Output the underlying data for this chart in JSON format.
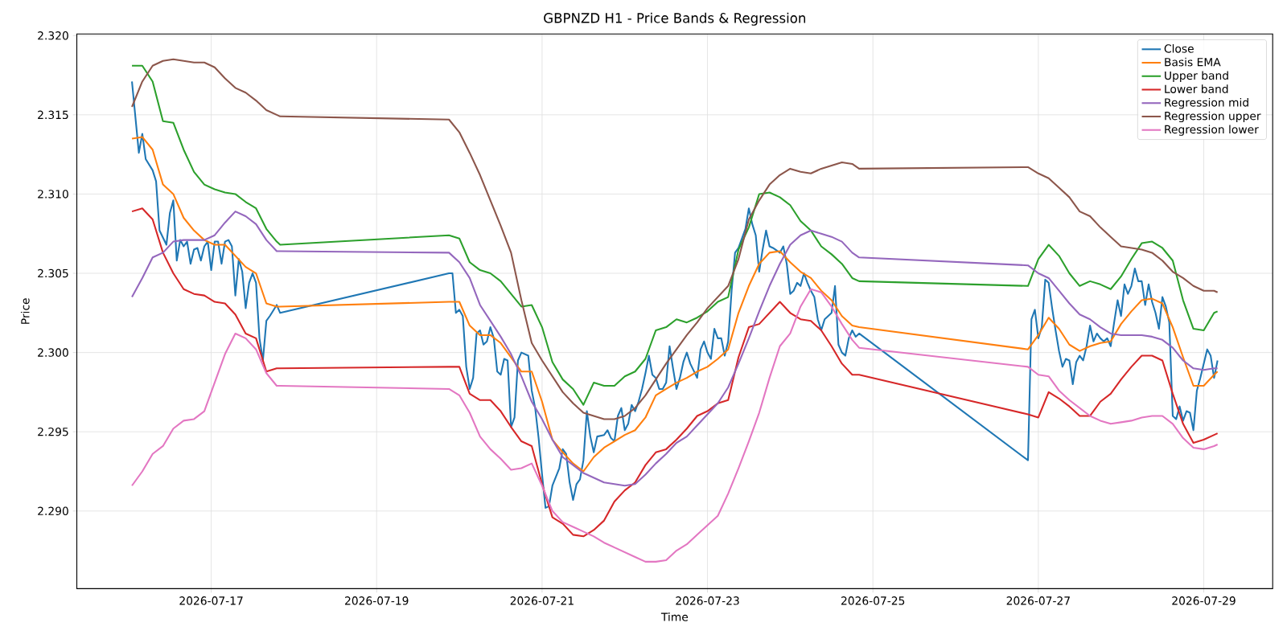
{
  "chart_data": {
    "type": "line",
    "title": "GBPNZD H1 - Price Bands & Regression",
    "xlabel": "Time",
    "ylabel": "Price",
    "xlim": [
      "2026-07-15T09:00",
      "2026-07-29T20:00"
    ],
    "ylim": [
      2.2851,
      2.3201
    ],
    "xticks": [
      "2026-07-17",
      "2026-07-19",
      "2026-07-21",
      "2026-07-23",
      "2026-07-25",
      "2026-07-27",
      "2026-07-29"
    ],
    "yticks": [
      {
        "value": 2.29,
        "label": "2.290"
      },
      2.295,
      {
        "value": 2.3,
        "label": "2.300"
      },
      2.305,
      {
        "value": 2.31,
        "label": "2.310"
      },
      2.315,
      {
        "value": 2.32,
        "label": "2.320"
      }
    ],
    "grid": true,
    "legend": "top right",
    "x": [
      "2026-07-16T01:00",
      "2026-07-16T04:00",
      "2026-07-16T07:00",
      "2026-07-16T10:00",
      "2026-07-16T13:00",
      "2026-07-16T16:00",
      "2026-07-16T19:00",
      "2026-07-16T22:00",
      "2026-07-17T01:00",
      "2026-07-17T04:00",
      "2026-07-17T07:00",
      "2026-07-17T10:00",
      "2026-07-17T13:00",
      "2026-07-17T16:00",
      "2026-07-17T19:00",
      "2026-07-17T20:00",
      "2026-07-19T21:00",
      "2026-07-20T00:00",
      "2026-07-20T03:00",
      "2026-07-20T06:00",
      "2026-07-20T09:00",
      "2026-07-20T12:00",
      "2026-07-20T15:00",
      "2026-07-20T18:00",
      "2026-07-20T21:00",
      "2026-07-21T00:00",
      "2026-07-21T03:00",
      "2026-07-21T06:00",
      "2026-07-21T09:00",
      "2026-07-21T12:00",
      "2026-07-21T15:00",
      "2026-07-21T18:00",
      "2026-07-21T21:00",
      "2026-07-22T00:00",
      "2026-07-22T03:00",
      "2026-07-22T06:00",
      "2026-07-22T09:00",
      "2026-07-22T12:00",
      "2026-07-22T15:00",
      "2026-07-22T18:00",
      "2026-07-22T21:00",
      "2026-07-23T00:00",
      "2026-07-23T03:00",
      "2026-07-23T06:00",
      "2026-07-23T09:00",
      "2026-07-23T12:00",
      "2026-07-23T15:00",
      "2026-07-23T18:00",
      "2026-07-23T21:00",
      "2026-07-24T00:00",
      "2026-07-24T03:00",
      "2026-07-24T06:00",
      "2026-07-24T09:00",
      "2026-07-24T12:00",
      "2026-07-24T15:00",
      "2026-07-24T18:00",
      "2026-07-24T20:00",
      "2026-07-26T21:00",
      "2026-07-27T00:00",
      "2026-07-27T03:00",
      "2026-07-27T06:00",
      "2026-07-27T09:00",
      "2026-07-27T12:00",
      "2026-07-27T15:00",
      "2026-07-27T18:00",
      "2026-07-27T21:00",
      "2026-07-28T00:00",
      "2026-07-28T03:00",
      "2026-07-28T06:00",
      "2026-07-28T09:00",
      "2026-07-28T12:00",
      "2026-07-28T15:00",
      "2026-07-28T18:00",
      "2026-07-28T21:00",
      "2026-07-29T00:00",
      "2026-07-29T03:00",
      "2026-07-29T04:00"
    ],
    "series": [
      {
        "name": "Close",
        "color": "#1f77b4",
        "x": [
          "2026-07-16T01:00",
          "2026-07-16T03:00",
          "2026-07-16T04:00",
          "2026-07-16T05:00",
          "2026-07-16T07:00",
          "2026-07-16T08:00",
          "2026-07-16T09:00",
          "2026-07-16T11:00",
          "2026-07-16T12:00",
          "2026-07-16T13:00",
          "2026-07-16T14:00",
          "2026-07-16T15:00",
          "2026-07-16T16:00",
          "2026-07-16T17:00",
          "2026-07-16T18:00",
          "2026-07-16T19:00",
          "2026-07-16T20:00",
          "2026-07-16T21:00",
          "2026-07-16T22:00",
          "2026-07-16T23:00",
          "2026-07-17T00:00",
          "2026-07-17T01:00",
          "2026-07-17T02:00",
          "2026-07-17T03:00",
          "2026-07-17T04:00",
          "2026-07-17T05:00",
          "2026-07-17T06:00",
          "2026-07-17T07:00",
          "2026-07-17T08:00",
          "2026-07-17T09:00",
          "2026-07-17T10:00",
          "2026-07-17T11:00",
          "2026-07-17T12:00",
          "2026-07-17T13:00",
          "2026-07-17T14:00",
          "2026-07-17T15:00",
          "2026-07-17T16:00",
          "2026-07-17T17:00",
          "2026-07-17T19:00",
          "2026-07-17T20:00",
          "2026-07-19T21:00",
          "2026-07-19T22:00",
          "2026-07-19T23:00",
          "2026-07-20T00:00",
          "2026-07-20T01:00",
          "2026-07-20T02:00",
          "2026-07-20T03:00",
          "2026-07-20T04:00",
          "2026-07-20T05:00",
          "2026-07-20T06:00",
          "2026-07-20T07:00",
          "2026-07-20T08:00",
          "2026-07-20T09:00",
          "2026-07-20T10:00",
          "2026-07-20T11:00",
          "2026-07-20T12:00",
          "2026-07-20T13:00",
          "2026-07-20T14:00",
          "2026-07-20T15:00",
          "2026-07-20T16:00",
          "2026-07-20T17:00",
          "2026-07-20T18:00",
          "2026-07-20T20:00",
          "2026-07-20T21:00",
          "2026-07-20T22:00",
          "2026-07-20T23:00",
          "2026-07-21T00:00",
          "2026-07-21T01:00",
          "2026-07-21T02:00",
          "2026-07-21T03:00",
          "2026-07-21T05:00",
          "2026-07-21T06:00",
          "2026-07-21T07:00",
          "2026-07-21T08:00",
          "2026-07-21T09:00",
          "2026-07-21T10:00",
          "2026-07-21T11:00",
          "2026-07-21T12:00",
          "2026-07-21T13:00",
          "2026-07-21T14:00",
          "2026-07-21T15:00",
          "2026-07-21T16:00",
          "2026-07-21T18:00",
          "2026-07-21T19:00",
          "2026-07-21T20:00",
          "2026-07-21T21:00",
          "2026-07-21T22:00",
          "2026-07-21T23:00",
          "2026-07-22T00:00",
          "2026-07-22T01:00",
          "2026-07-22T02:00",
          "2026-07-22T03:00",
          "2026-07-22T04:00",
          "2026-07-22T05:00",
          "2026-07-22T06:00",
          "2026-07-22T07:00",
          "2026-07-22T08:00",
          "2026-07-22T09:00",
          "2026-07-22T10:00",
          "2026-07-22T11:00",
          "2026-07-22T12:00",
          "2026-07-22T13:00",
          "2026-07-22T14:00",
          "2026-07-22T15:00",
          "2026-07-22T16:00",
          "2026-07-22T17:00",
          "2026-07-22T18:00",
          "2026-07-22T19:00",
          "2026-07-22T21:00",
          "2026-07-22T22:00",
          "2026-07-22T23:00",
          "2026-07-23T00:00",
          "2026-07-23T01:00",
          "2026-07-23T02:00",
          "2026-07-23T03:00",
          "2026-07-23T04:00",
          "2026-07-23T05:00",
          "2026-07-23T06:00",
          "2026-07-23T07:00",
          "2026-07-23T08:00",
          "2026-07-23T09:00",
          "2026-07-23T10:00",
          "2026-07-23T11:00",
          "2026-07-23T12:00",
          "2026-07-23T13:00",
          "2026-07-23T14:00",
          "2026-07-23T15:00",
          "2026-07-23T16:00",
          "2026-07-23T17:00",
          "2026-07-23T18:00",
          "2026-07-23T19:00",
          "2026-07-23T21:00",
          "2026-07-23T22:00",
          "2026-07-23T23:00",
          "2026-07-24T00:00",
          "2026-07-24T01:00",
          "2026-07-24T02:00",
          "2026-07-24T03:00",
          "2026-07-24T04:00",
          "2026-07-24T05:00",
          "2026-07-24T06:00",
          "2026-07-24T07:00",
          "2026-07-24T08:00",
          "2026-07-24T09:00",
          "2026-07-24T10:00",
          "2026-07-24T12:00",
          "2026-07-24T13:00",
          "2026-07-24T14:00",
          "2026-07-24T15:00",
          "2026-07-24T16:00",
          "2026-07-24T17:00",
          "2026-07-24T18:00",
          "2026-07-24T19:00",
          "2026-07-24T20:00",
          "2026-07-26T21:00",
          "2026-07-26T22:00",
          "2026-07-26T23:00",
          "2026-07-27T00:00",
          "2026-07-27T01:00",
          "2026-07-27T02:00",
          "2026-07-27T03:00",
          "2026-07-27T04:00",
          "2026-07-27T05:00",
          "2026-07-27T06:00",
          "2026-07-27T07:00",
          "2026-07-27T08:00",
          "2026-07-27T09:00",
          "2026-07-27T10:00",
          "2026-07-27T11:00",
          "2026-07-27T12:00",
          "2026-07-27T13:00",
          "2026-07-27T14:00",
          "2026-07-27T15:00",
          "2026-07-27T16:00",
          "2026-07-27T17:00",
          "2026-07-27T18:00",
          "2026-07-27T19:00",
          "2026-07-27T20:00",
          "2026-07-27T21:00",
          "2026-07-27T22:00",
          "2026-07-27T23:00",
          "2026-07-28T00:00",
          "2026-07-28T01:00",
          "2026-07-28T02:00",
          "2026-07-28T03:00",
          "2026-07-28T04:00",
          "2026-07-28T05:00",
          "2026-07-28T06:00",
          "2026-07-28T07:00",
          "2026-07-28T08:00",
          "2026-07-28T09:00",
          "2026-07-28T10:00",
          "2026-07-28T11:00",
          "2026-07-28T12:00",
          "2026-07-28T13:00",
          "2026-07-28T14:00",
          "2026-07-28T15:00",
          "2026-07-28T16:00",
          "2026-07-28T17:00",
          "2026-07-28T18:00",
          "2026-07-28T19:00",
          "2026-07-28T20:00",
          "2026-07-28T21:00",
          "2026-07-28T22:00",
          "2026-07-28T23:00",
          "2026-07-29T00:00",
          "2026-07-29T01:00",
          "2026-07-29T02:00",
          "2026-07-29T03:00",
          "2026-07-29T04:00"
        ],
        "values": [
          2.3171,
          2.3126,
          2.3138,
          2.3122,
          2.3115,
          2.3108,
          2.3077,
          2.3068,
          2.3088,
          2.3096,
          2.3058,
          2.3071,
          2.3067,
          2.307,
          2.3056,
          2.3065,
          2.3066,
          2.3058,
          2.3067,
          2.307,
          2.3052,
          2.307,
          2.307,
          2.3056,
          2.307,
          2.3071,
          2.3067,
          2.3036,
          2.3059,
          2.3051,
          2.3028,
          2.3044,
          2.305,
          2.3044,
          2.3009,
          2.2995,
          2.302,
          2.3023,
          2.303,
          2.3025,
          2.305,
          2.305,
          2.3025,
          2.3027,
          2.3023,
          2.2991,
          2.2977,
          2.2984,
          2.3012,
          2.3014,
          2.3005,
          2.3007,
          2.3016,
          2.3009,
          2.2988,
          2.2986,
          2.2996,
          2.2995,
          2.2953,
          2.2959,
          2.2995,
          2.3,
          2.2998,
          2.2976,
          2.2965,
          2.2946,
          2.2923,
          2.2902,
          2.2903,
          2.2916,
          2.2927,
          2.2939,
          2.2936,
          2.2918,
          2.2907,
          2.2917,
          2.292,
          2.2932,
          2.2963,
          2.2947,
          2.2937,
          2.2947,
          2.2948,
          2.2951,
          2.2946,
          2.2944,
          2.296,
          2.2965,
          2.2951,
          2.2955,
          2.2967,
          2.2963,
          2.2969,
          2.2977,
          2.2987,
          2.2998,
          2.2986,
          2.2984,
          2.2977,
          2.2977,
          2.2981,
          2.3004,
          2.299,
          2.2977,
          2.2984,
          2.2994,
          2.3,
          2.2993,
          2.2984,
          2.3002,
          2.3007,
          2.3,
          2.2996,
          2.3015,
          2.3009,
          2.3009,
          2.2998,
          2.3007,
          2.3039,
          2.3063,
          2.3066,
          2.3072,
          2.3078,
          2.3091,
          2.3081,
          2.3074,
          2.3051,
          2.3065,
          2.3077,
          2.3067,
          2.3066,
          2.3063,
          2.3067,
          2.3056,
          2.3037,
          2.3039,
          2.3044,
          2.3042,
          2.305,
          2.3044,
          2.3039,
          2.3035,
          2.3021,
          2.3014,
          2.3021,
          2.3025,
          2.3042,
          2.3005,
          2.3,
          2.2998,
          2.3009,
          2.3014,
          2.301,
          2.3012,
          2.2932,
          2.3021,
          2.3027,
          2.3009,
          2.3016,
          2.3046,
          2.3044,
          2.3028,
          2.3014,
          2.3001,
          2.2991,
          2.2996,
          2.2995,
          2.298,
          2.2994,
          2.2998,
          2.2995,
          2.3004,
          2.3017,
          2.3007,
          2.3012,
          2.3009,
          2.3007,
          2.3009,
          2.3004,
          2.3019,
          2.3033,
          2.3023,
          2.3043,
          2.3037,
          2.3042,
          2.3053,
          2.3045,
          2.3045,
          2.303,
          2.3043,
          2.3032,
          2.3025,
          2.3015,
          2.3035,
          2.3029,
          2.3019,
          2.296,
          2.2958,
          2.2966,
          2.2957,
          2.2963,
          2.2962,
          2.2951,
          2.2976,
          2.2984,
          2.2993,
          2.3002,
          2.2998,
          2.2984,
          2.2995
        ]
      },
      {
        "name": "Basis EMA",
        "color": "#ff7f0e",
        "values": [
          2.3135,
          2.3136,
          2.3128,
          2.3106,
          2.31,
          2.3085,
          2.3077,
          2.3071,
          2.3068,
          2.3068,
          2.3061,
          2.3054,
          2.305,
          2.3031,
          2.3029,
          2.3029,
          2.3032,
          2.3032,
          2.3017,
          2.3011,
          2.3011,
          2.3006,
          2.2997,
          2.2988,
          2.2988,
          2.2969,
          2.2945,
          2.2937,
          2.293,
          2.2925,
          2.2934,
          2.294,
          2.2944,
          2.2948,
          2.2951,
          2.2959,
          2.2973,
          2.2977,
          2.2981,
          2.2984,
          2.2988,
          2.2991,
          2.2996,
          2.3002,
          2.3025,
          2.3042,
          2.3056,
          2.3063,
          2.3064,
          2.3057,
          2.3051,
          2.3047,
          2.3039,
          2.3033,
          2.3023,
          2.3017,
          2.3016,
          2.3002,
          2.3011,
          2.3022,
          2.3015,
          2.3005,
          2.3001,
          2.3004,
          2.3006,
          2.3007,
          2.3018,
          2.3026,
          2.3033,
          2.3034,
          2.3031,
          2.3016,
          2.2997,
          2.2979,
          2.2979,
          2.2986,
          2.2988
        ]
      },
      {
        "name": "Upper band",
        "color": "#2ca02c",
        "values": [
          2.3181,
          2.3181,
          2.3171,
          2.3146,
          2.3145,
          2.3128,
          2.3114,
          2.3106,
          2.3103,
          2.3101,
          2.31,
          2.3095,
          2.3091,
          2.3078,
          2.307,
          2.3068,
          2.3074,
          2.3072,
          2.3057,
          2.3052,
          2.305,
          2.3045,
          2.3037,
          2.3029,
          2.303,
          2.3016,
          2.2994,
          2.2983,
          2.2977,
          2.2967,
          2.2981,
          2.2979,
          2.2979,
          2.2985,
          2.2988,
          2.2996,
          2.3014,
          2.3016,
          2.3021,
          2.3019,
          2.3022,
          2.3026,
          2.3032,
          2.3035,
          2.3065,
          2.3079,
          2.31,
          2.3101,
          2.3098,
          2.3093,
          2.3083,
          2.3077,
          2.3067,
          2.3062,
          2.3056,
          2.3047,
          2.3045,
          2.3042,
          2.3059,
          2.3068,
          2.3061,
          2.305,
          2.3042,
          2.3045,
          2.3043,
          2.304,
          2.3048,
          2.3059,
          2.3069,
          2.307,
          2.3066,
          2.3058,
          2.3033,
          2.3015,
          2.3014,
          2.3025,
          2.3026
        ]
      },
      {
        "name": "Lower band",
        "color": "#d62728",
        "values": [
          2.3089,
          2.3091,
          2.3084,
          2.3063,
          2.305,
          2.304,
          2.3037,
          2.3036,
          2.3032,
          2.3031,
          2.3024,
          2.3012,
          2.3009,
          2.2988,
          2.299,
          2.299,
          2.2991,
          2.2991,
          2.2974,
          2.297,
          2.297,
          2.2963,
          2.2953,
          2.2944,
          2.2941,
          2.2917,
          2.2896,
          2.2892,
          2.2885,
          2.2884,
          2.2888,
          2.2894,
          2.2906,
          2.2913,
          2.2918,
          2.2929,
          2.2937,
          2.2939,
          2.2945,
          2.2952,
          2.296,
          2.2963,
          2.2968,
          2.297,
          2.2997,
          2.3016,
          2.3018,
          2.3025,
          2.3032,
          2.3025,
          2.3021,
          2.302,
          2.3014,
          2.3004,
          2.2993,
          2.2986,
          2.2986,
          2.2961,
          2.2959,
          2.2975,
          2.2971,
          2.2966,
          2.296,
          2.296,
          2.2969,
          2.2974,
          2.2983,
          2.2991,
          2.2998,
          2.2998,
          2.2995,
          2.2974,
          2.2955,
          2.2943,
          2.2945,
          2.2948,
          2.2949
        ]
      },
      {
        "name": "Regression mid",
        "color": "#9467bd",
        "values": [
          2.3035,
          2.3047,
          2.306,
          2.3063,
          2.307,
          2.3071,
          2.3071,
          2.3071,
          2.3074,
          2.3082,
          2.3089,
          2.3086,
          2.3081,
          2.3071,
          2.3064,
          2.3064,
          2.3063,
          2.3057,
          2.3047,
          2.303,
          2.302,
          2.301,
          2.2999,
          2.2985,
          2.2969,
          2.2958,
          2.2945,
          2.2934,
          2.2929,
          2.2924,
          2.2921,
          2.2918,
          2.2917,
          2.2916,
          2.2917,
          2.2923,
          2.293,
          2.2936,
          2.2943,
          2.2947,
          2.2954,
          2.2961,
          2.2968,
          2.2978,
          2.2993,
          2.3009,
          2.3026,
          2.3042,
          2.3056,
          2.3068,
          2.3074,
          2.3077,
          2.3075,
          2.3073,
          2.307,
          2.3063,
          2.306,
          2.3055,
          2.305,
          2.3047,
          2.3039,
          2.3031,
          2.3024,
          2.3021,
          2.3016,
          2.3012,
          2.3011,
          2.3011,
          2.3011,
          2.301,
          2.3008,
          2.3003,
          2.2995,
          2.299,
          2.2989,
          2.299,
          2.299
        ]
      },
      {
        "name": "Regression upper",
        "color": "#8c564b",
        "values": [
          2.3155,
          2.3171,
          2.3181,
          2.3184,
          2.3185,
          2.3184,
          2.3183,
          2.3183,
          2.318,
          2.3173,
          2.3167,
          2.3164,
          2.3159,
          2.3153,
          2.315,
          2.3149,
          2.3147,
          2.3139,
          2.3126,
          2.3112,
          2.3096,
          2.308,
          2.3063,
          2.3033,
          2.3006,
          2.2995,
          2.2985,
          2.2975,
          2.2968,
          2.2962,
          2.296,
          2.2958,
          2.2958,
          2.296,
          2.2965,
          2.2973,
          2.2983,
          2.2993,
          2.3002,
          2.3011,
          2.3019,
          2.3028,
          2.3035,
          2.3042,
          2.3059,
          2.3084,
          2.3096,
          2.3106,
          2.3112,
          2.3116,
          2.3114,
          2.3113,
          2.3116,
          2.3118,
          2.312,
          2.3119,
          2.3116,
          2.3117,
          2.3113,
          2.311,
          2.3104,
          2.3098,
          2.3089,
          2.3086,
          2.3079,
          2.3073,
          2.3067,
          2.3066,
          2.3065,
          2.3063,
          2.3058,
          2.3051,
          2.3047,
          2.3042,
          2.3039,
          2.3039,
          2.3038
        ]
      },
      {
        "name": "Regression lower",
        "color": "#e377c2",
        "values": [
          2.2916,
          2.2925,
          2.2936,
          2.2941,
          2.2952,
          2.2957,
          2.2958,
          2.2963,
          2.2981,
          2.2999,
          2.3012,
          2.3009,
          2.3002,
          2.2987,
          2.2979,
          2.2979,
          2.2977,
          2.2973,
          2.2962,
          2.2947,
          2.2939,
          2.2933,
          2.2926,
          2.2927,
          2.293,
          2.2916,
          2.29,
          2.2893,
          2.289,
          2.2887,
          2.2884,
          2.288,
          2.2877,
          2.2874,
          2.2871,
          2.2868,
          2.2868,
          2.2869,
          2.2875,
          2.2879,
          2.2885,
          2.2891,
          2.2897,
          2.2911,
          2.2927,
          2.2944,
          2.2962,
          2.2984,
          2.3004,
          2.3012,
          2.3029,
          2.304,
          2.3038,
          2.3029,
          2.3018,
          2.3008,
          2.3003,
          2.2991,
          2.2986,
          2.2985,
          2.2976,
          2.297,
          2.2965,
          2.296,
          2.2957,
          2.2955,
          2.2956,
          2.2957,
          2.2959,
          2.296,
          2.296,
          2.2955,
          2.2946,
          2.294,
          2.2939,
          2.2941,
          2.2942
        ]
      }
    ]
  }
}
